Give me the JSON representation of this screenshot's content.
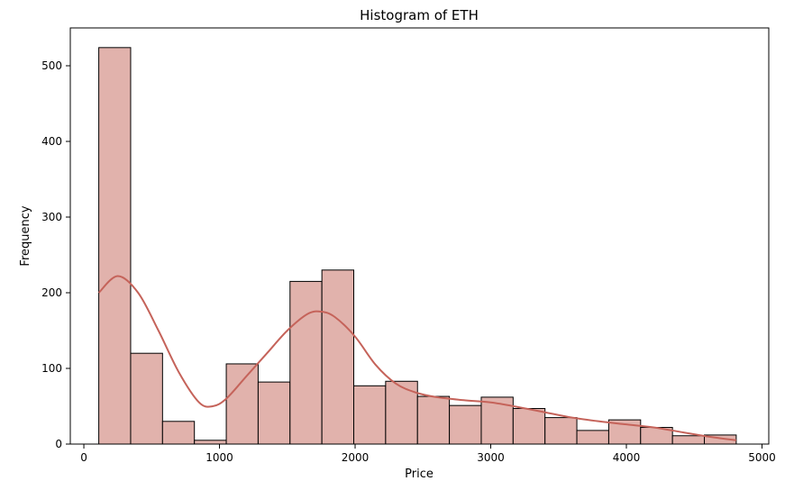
{
  "chart_data": {
    "type": "bar",
    "title": "Histogram of ETH",
    "xlabel": "Price",
    "ylabel": "Frequency",
    "xlim": [
      -100,
      5050
    ],
    "ylim": [
      0,
      550
    ],
    "xticks": [
      0,
      1000,
      2000,
      3000,
      4000,
      5000
    ],
    "yticks": [
      0,
      100,
      200,
      300,
      400,
      500
    ],
    "bin_edges": [
      110,
      345,
      580,
      815,
      1050,
      1285,
      1520,
      1755,
      1990,
      2225,
      2460,
      2695,
      2930,
      3165,
      3400,
      3635,
      3870,
      4105,
      4340,
      4575,
      4810
    ],
    "values": [
      524,
      120,
      30,
      5,
      106,
      82,
      215,
      230,
      77,
      83,
      63,
      51,
      62,
      47,
      35,
      18,
      32,
      22,
      11,
      12
    ],
    "kde": {
      "x": [
        110,
        250,
        400,
        550,
        700,
        850,
        950,
        1050,
        1200,
        1350,
        1500,
        1650,
        1750,
        1850,
        2000,
        2150,
        2300,
        2450,
        2600,
        2800,
        3000,
        3200,
        3400,
        3600,
        3800,
        4000,
        4200,
        4400,
        4600,
        4810
      ],
      "y": [
        200,
        222,
        200,
        150,
        95,
        55,
        50,
        60,
        90,
        120,
        150,
        172,
        175,
        168,
        142,
        105,
        80,
        68,
        62,
        58,
        55,
        49,
        42,
        35,
        30,
        26,
        22,
        16,
        10,
        5
      ]
    },
    "colors": {
      "bar_fill": "#e1b2ac",
      "bar_edge": "#000000",
      "kde_line": "#c5635a"
    },
    "grid": false,
    "legend": "none"
  }
}
